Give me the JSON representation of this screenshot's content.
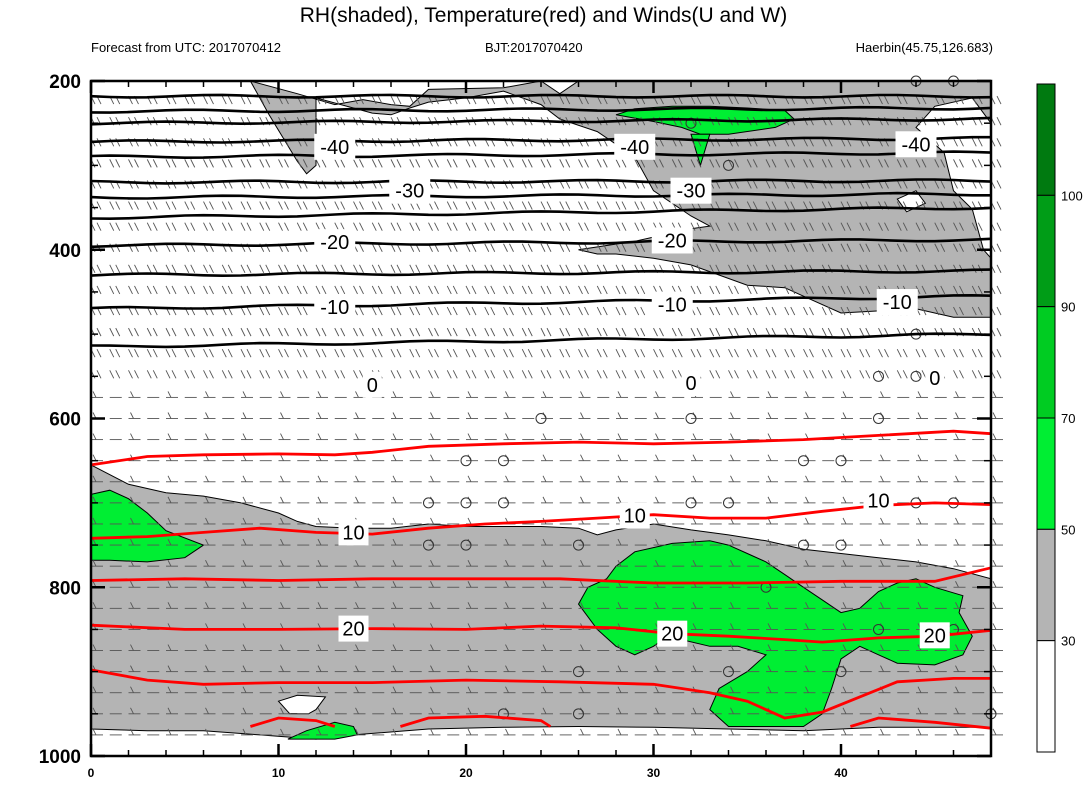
{
  "chart_data": {
    "type": "contour",
    "title": "RH(shaded), Temperature(red) and Winds(U and W)",
    "subtitle_left": "Forecast from UTC: 2017070412",
    "subtitle_center": "BJT:2017070420",
    "subtitle_right": "Haerbin(45.75,126.683)",
    "x_range": [
      0,
      48
    ],
    "x_ticks": [
      0,
      10,
      20,
      30,
      40
    ],
    "y_axis": "pressure (hPa), inverted",
    "y_range": [
      1000,
      200
    ],
    "y_ticks": [
      200,
      400,
      600,
      800,
      1000
    ],
    "grid": false,
    "colorbar": {
      "position": "right",
      "levels": [
        30,
        50,
        70,
        90,
        100
      ],
      "colors": [
        "#ffffff",
        "#b4b4b4",
        "#00ee33",
        "#00cc22",
        "#009d17",
        "#007a10"
      ]
    },
    "shading_legend_note": "",
    "temperature_contours_black": [
      {
        "label": "-40",
        "p": [
          228,
          250,
          272,
          290
        ],
        "label_points": [
          [
            13,
            278
          ],
          [
            29,
            278
          ],
          [
            44,
            275
          ]
        ]
      },
      {
        "label": "-30",
        "p": [
          338,
          362
        ],
        "label_points": [
          [
            17,
            330
          ],
          [
            32,
            330
          ]
        ]
      },
      {
        "label": "-20",
        "p": [
          395,
          430
        ],
        "label_points": [
          [
            13,
            391
          ],
          [
            31,
            389
          ]
        ]
      },
      {
        "label": "-10",
        "p": [
          470,
          515
        ],
        "label_points": [
          [
            13,
            468
          ],
          [
            31,
            465
          ],
          [
            43,
            462
          ]
        ]
      },
      {
        "label": "0",
        "p": [],
        "label_points": [
          [
            15,
            560
          ],
          [
            32,
            558
          ],
          [
            45,
            552
          ]
        ]
      }
    ],
    "temperature_contours_red": [
      {
        "label": "",
        "p_start": 655,
        "p_end": 612
      },
      {
        "label": "10",
        "p_start": 742,
        "p_end": 702,
        "label_points": [
          [
            14,
            735
          ],
          [
            29,
            715
          ],
          [
            42,
            697
          ]
        ]
      },
      {
        "label": "",
        "p_start": 792,
        "p_end": 775
      },
      {
        "label": "20",
        "p_start": 845,
        "p_end": 850,
        "label_points": [
          [
            14,
            849
          ],
          [
            31,
            855
          ],
          [
            45,
            857
          ]
        ]
      },
      {
        "label": "",
        "p_start": 898,
        "p_end": 958
      },
      {
        "label": "",
        "p_start": 950,
        "p_end": 967
      }
    ],
    "wind_barbs": "U and W barbs at every level, 0 to 48 h",
    "calm_circles_note": ""
  },
  "colors": {
    "shade_50": "#b4b4b4",
    "shade_70": "#00ee33",
    "temperature_line": "#ff0000",
    "line_black": "#000000"
  }
}
